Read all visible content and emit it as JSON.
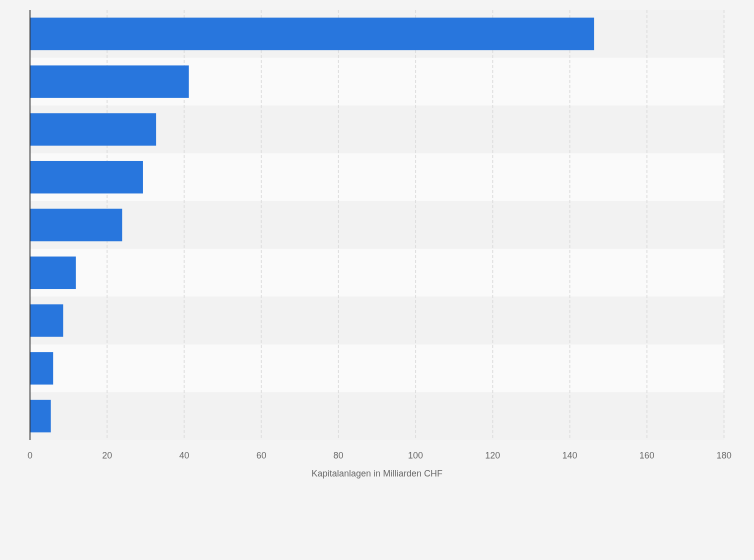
{
  "chart_data": {
    "type": "bar",
    "orientation": "horizontal",
    "x_label": "Kapitalanlagen in Milliarden CHF",
    "categories": [
      null,
      null,
      null,
      null,
      null,
      null,
      null,
      null,
      null
    ],
    "values": [
      146.3,
      41.2,
      32.7,
      29.3,
      23.9,
      11.9,
      8.6,
      6.0,
      5.4
    ],
    "color": "#2876dd",
    "xlim": [
      0,
      180
    ],
    "xticks": [
      0,
      20,
      40,
      60,
      80,
      100,
      120,
      140,
      160,
      180
    ],
    "grid": true
  }
}
